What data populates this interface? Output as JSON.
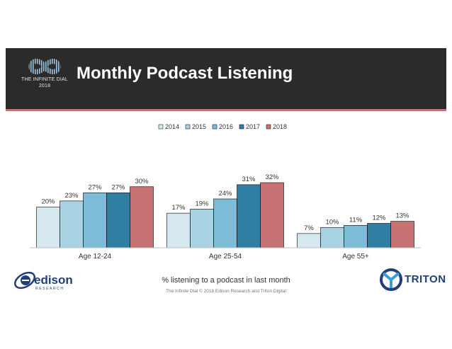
{
  "header": {
    "title": "Monthly Podcast Listening",
    "logo_line1": "THE INFINITE DIAL",
    "logo_line2": "2018"
  },
  "footer": {
    "caption": "% listening to a podcast in last month",
    "copyright": "The Infinite Dial © 2018 Edison Research and Triton Digital",
    "left_logo": "edison",
    "left_logo_sub": "RESEARCH",
    "right_logo": "TRITON"
  },
  "colors": {
    "banner": "#2b2b2b",
    "accent": "#c77272"
  },
  "chart_data": {
    "type": "bar",
    "title": "",
    "xlabel": "",
    "ylabel": "",
    "ylim": [
      0,
      35
    ],
    "legend_position": "top",
    "grid": false,
    "categories": [
      "Age 12-24",
      "Age 25-54",
      "Age 55+"
    ],
    "series": [
      {
        "name": "2014",
        "color": "#d5e8f0",
        "values": [
          20,
          17,
          7
        ],
        "labels": [
          "20%",
          "17%",
          "7%"
        ]
      },
      {
        "name": "2015",
        "color": "#a9d3e3",
        "values": [
          23,
          19,
          10
        ],
        "labels": [
          "23%",
          "19%",
          "10%"
        ]
      },
      {
        "name": "2016",
        "color": "#7dbcd6",
        "values": [
          27,
          24,
          11
        ],
        "labels": [
          "27%",
          "24%",
          "11%"
        ]
      },
      {
        "name": "2017",
        "color": "#2f7fa4",
        "values": [
          27,
          31,
          12
        ],
        "labels": [
          "27%",
          "31%",
          "12%"
        ]
      },
      {
        "name": "2018",
        "color": "#c77272",
        "values": [
          30,
          32,
          13
        ],
        "labels": [
          "30%",
          "32%",
          "13%"
        ]
      }
    ]
  }
}
